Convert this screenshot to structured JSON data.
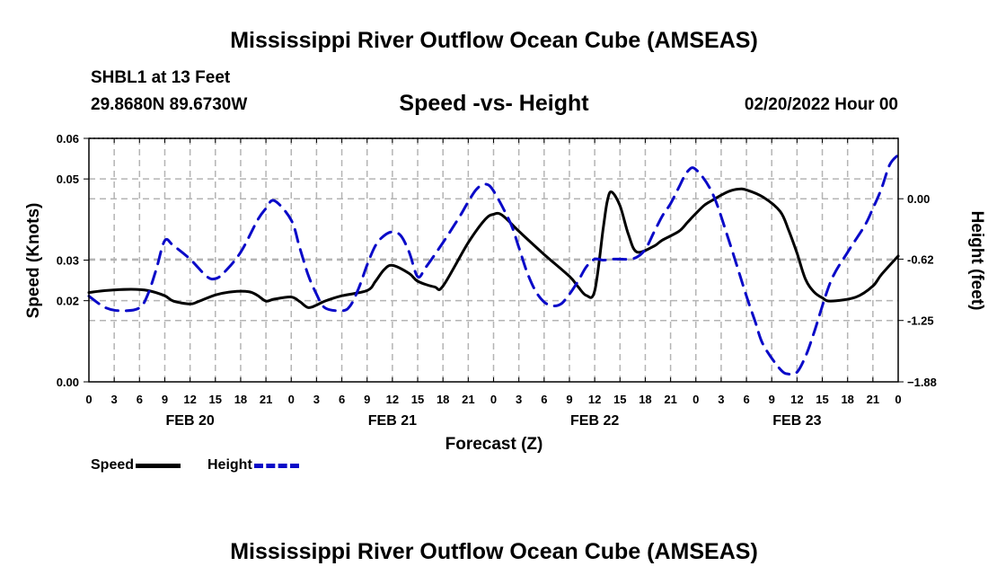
{
  "header": {
    "title": "Mississippi River Outflow Ocean Cube (AMSEAS)",
    "station": "SHBL1 at 13 Feet",
    "coords": "29.8680N  89.6730W",
    "subtitle": "Speed -vs- Height",
    "timestamp": "02/20/2022 Hour 00"
  },
  "footer": {
    "title": "Mississippi River Outflow Ocean Cube (AMSEAS)"
  },
  "legend": {
    "speed_label": "Speed",
    "height_label": "Height"
  },
  "colors": {
    "speed": "#000000",
    "height": "#0a0ac8",
    "grid": "#b4b4b4"
  },
  "chart_data": {
    "type": "line",
    "title": "Speed -vs- Height",
    "xlabel": "Forecast (Z)",
    "ylabel": "Speed (Knots)",
    "y2label": "Height (feet)",
    "xlim": [
      0,
      96
    ],
    "ylim": [
      0.0,
      0.06
    ],
    "y2lim": [
      -1.88,
      0.62
    ],
    "x_tick_step_hours": 3,
    "x_tick_labels": [
      "0",
      "3",
      "6",
      "9",
      "12",
      "15",
      "18",
      "21",
      "0",
      "3",
      "6",
      "9",
      "12",
      "15",
      "18",
      "21",
      "0",
      "3",
      "6",
      "9",
      "12",
      "15",
      "18",
      "21",
      "0",
      "3",
      "6",
      "9",
      "12",
      "15",
      "18",
      "21",
      "0"
    ],
    "day_labels": [
      {
        "hour": 12,
        "label": "FEB 20"
      },
      {
        "hour": 36,
        "label": "FEB 21"
      },
      {
        "hour": 60,
        "label": "FEB 22"
      },
      {
        "hour": 84,
        "label": "FEB 23"
      }
    ],
    "y_ticks": [
      {
        "value": 0.0,
        "label": "0.00"
      },
      {
        "value": 0.02,
        "label": "0.02"
      },
      {
        "value": 0.03,
        "label": "0.03"
      },
      {
        "value": 0.05,
        "label": "0.05"
      },
      {
        "value": 0.06,
        "label": "0.06"
      }
    ],
    "y2_ticks": [
      {
        "value": 0.0,
        "label": "0.00"
      },
      {
        "value": -0.62,
        "label": "-0.62"
      },
      {
        "value": -1.25,
        "label": "-1.25"
      },
      {
        "value": -1.88,
        "label": "−1.88"
      }
    ],
    "grid": true,
    "series": [
      {
        "name": "Speed",
        "axis": "left",
        "style": "solid",
        "x": [
          0,
          2,
          5,
          7,
          9,
          10,
          12,
          13,
          15,
          17,
          19,
          20,
          21,
          22,
          24,
          25,
          26,
          27,
          28,
          30,
          33,
          34,
          35,
          36,
          38,
          39,
          41,
          42,
          45,
          47,
          48,
          49,
          51,
          54,
          57,
          58,
          59,
          60,
          61,
          61.5,
          62,
          63,
          64,
          65,
          67,
          68,
          70,
          71,
          72,
          73,
          74,
          75,
          76,
          77,
          78,
          80,
          82,
          83,
          84,
          85,
          86,
          87,
          88,
          91,
          93,
          94,
          96
        ],
        "y": [
          0.022,
          0.0225,
          0.0228,
          0.0225,
          0.0212,
          0.0199,
          0.0192,
          0.0198,
          0.0214,
          0.0222,
          0.0222,
          0.0213,
          0.0199,
          0.0204,
          0.0209,
          0.0198,
          0.0183,
          0.0189,
          0.0199,
          0.0212,
          0.0225,
          0.0248,
          0.0276,
          0.0287,
          0.0267,
          0.0248,
          0.0234,
          0.0236,
          0.0343,
          0.04,
          0.0413,
          0.0411,
          0.0371,
          0.0314,
          0.026,
          0.0235,
          0.0213,
          0.0224,
          0.0377,
          0.0446,
          0.0468,
          0.0434,
          0.0363,
          0.032,
          0.0334,
          0.0349,
          0.0371,
          0.0393,
          0.0415,
          0.0435,
          0.0448,
          0.046,
          0.047,
          0.0475,
          0.0473,
          0.0455,
          0.042,
          0.0374,
          0.0317,
          0.0253,
          0.0222,
          0.0207,
          0.0199,
          0.0209,
          0.0236,
          0.0264,
          0.031
        ]
      },
      {
        "name": "Height",
        "axis": "right",
        "style": "dashed",
        "x": [
          0,
          2,
          4,
          6,
          7,
          8,
          9,
          10,
          12,
          14,
          15,
          16,
          18,
          20,
          21,
          22,
          24,
          25,
          26,
          27,
          28,
          30,
          31,
          32,
          33,
          34,
          35,
          36,
          37,
          38,
          39,
          40,
          42,
          44,
          45,
          46,
          47,
          48,
          50,
          51,
          52,
          53,
          54,
          55,
          56,
          57,
          58,
          59,
          60,
          61,
          62,
          63,
          64,
          65,
          66,
          67,
          68,
          69,
          70,
          71,
          72,
          74,
          76,
          78,
          79,
          80,
          82,
          83,
          84,
          85,
          86,
          88,
          90,
          92,
          93,
          94,
          95,
          96
        ],
        "y": [
          -1.0,
          -1.12,
          -1.15,
          -1.12,
          -0.98,
          -0.72,
          -0.43,
          -0.48,
          -0.62,
          -0.8,
          -0.82,
          -0.76,
          -0.55,
          -0.22,
          -0.1,
          -0.02,
          -0.22,
          -0.5,
          -0.78,
          -0.98,
          -1.12,
          -1.15,
          -1.1,
          -0.92,
          -0.68,
          -0.48,
          -0.38,
          -0.34,
          -0.38,
          -0.55,
          -0.8,
          -0.7,
          -0.45,
          -0.18,
          -0.03,
          0.1,
          0.15,
          0.08,
          -0.25,
          -0.5,
          -0.76,
          -0.95,
          -1.06,
          -1.1,
          -1.08,
          -0.98,
          -0.85,
          -0.7,
          -0.62,
          -0.63,
          -0.62,
          -0.62,
          -0.62,
          -0.6,
          -0.52,
          -0.35,
          -0.18,
          -0.05,
          0.12,
          0.28,
          0.3,
          0.05,
          -0.45,
          -1.0,
          -1.25,
          -1.5,
          -1.75,
          -1.8,
          -1.78,
          -1.62,
          -1.38,
          -0.85,
          -0.55,
          -0.28,
          -0.1,
          0.1,
          0.35,
          0.45
        ]
      }
    ]
  }
}
